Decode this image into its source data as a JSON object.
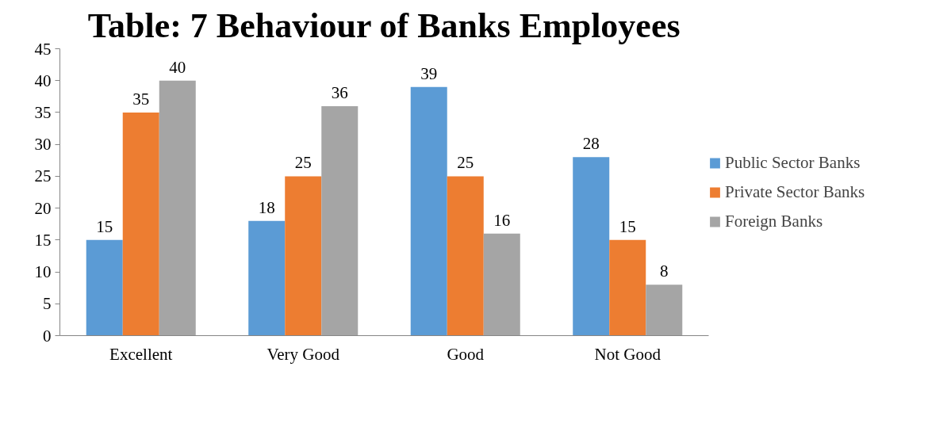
{
  "chart_data": {
    "type": "bar",
    "title": "Table: 7 Behaviour of Banks Employees",
    "categories": [
      "Excellent",
      "Very Good",
      "Good",
      "Not Good"
    ],
    "series": [
      {
        "name": "Public Sector Banks",
        "color": "#5b9bd5",
        "values": [
          15,
          18,
          39,
          28
        ]
      },
      {
        "name": "Private Sector Banks",
        "color": "#ed7d31",
        "values": [
          35,
          25,
          25,
          15
        ]
      },
      {
        "name": "Foreign Banks",
        "color": "#a5a5a5",
        "values": [
          40,
          36,
          16,
          8
        ]
      }
    ],
    "ylim": [
      0,
      45
    ],
    "yticks": [
      0,
      5,
      10,
      15,
      20,
      25,
      30,
      35,
      40,
      45
    ],
    "grid": false,
    "legend": "right",
    "data_labels": true
  }
}
